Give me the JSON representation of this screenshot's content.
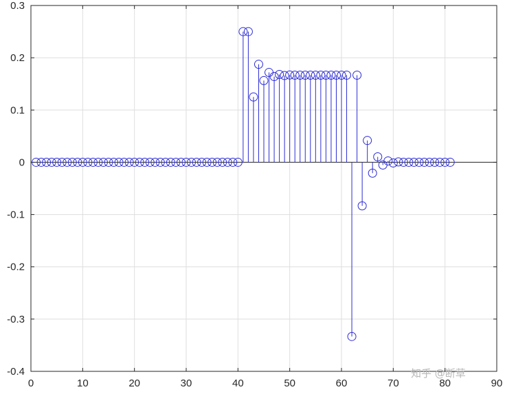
{
  "chart_data": {
    "type": "stem",
    "title": "",
    "xlabel": "",
    "ylabel": "",
    "xlim": [
      0,
      90
    ],
    "ylim": [
      -0.4,
      0.3
    ],
    "grid": true,
    "x_ticks": [
      0,
      10,
      20,
      30,
      40,
      50,
      60,
      70,
      80,
      90
    ],
    "y_ticks": [
      -0.4,
      -0.3,
      -0.2,
      -0.1,
      0,
      0.1,
      0.2,
      0.3
    ],
    "x_tick_labels": [
      "0",
      "10",
      "20",
      "30",
      "40",
      "50",
      "60",
      "70",
      "80",
      "90"
    ],
    "y_tick_labels": [
      "-0.4",
      "-0.3",
      "-0.2",
      "-0.1",
      "0",
      "0.1",
      "0.2",
      "0.3"
    ],
    "series": [
      {
        "color": "#2b2bd6",
        "marker": "open-circle",
        "x": [
          1,
          2,
          3,
          4,
          5,
          6,
          7,
          8,
          9,
          10,
          11,
          12,
          13,
          14,
          15,
          16,
          17,
          18,
          19,
          20,
          21,
          22,
          23,
          24,
          25,
          26,
          27,
          28,
          29,
          30,
          31,
          32,
          33,
          34,
          35,
          36,
          37,
          38,
          39,
          40,
          41,
          42,
          43,
          44,
          45,
          46,
          47,
          48,
          49,
          50,
          51,
          52,
          53,
          54,
          55,
          56,
          57,
          58,
          59,
          60,
          61,
          62,
          63,
          64,
          65,
          66,
          67,
          68,
          69,
          70,
          71,
          72,
          73,
          74,
          75,
          76,
          77,
          78,
          79,
          80,
          81
        ],
        "y": [
          0,
          0,
          0,
          0,
          0,
          0,
          0,
          0,
          0,
          0,
          0,
          0,
          0,
          0,
          0,
          0,
          0,
          0,
          0,
          0,
          0,
          0,
          0,
          0,
          0,
          0,
          0,
          0,
          0,
          0,
          0,
          0,
          0,
          0,
          0,
          0,
          0,
          0,
          0,
          0,
          0.25,
          0.25,
          0.125,
          0.1875,
          0.1563,
          0.1719,
          0.1641,
          0.168,
          0.166,
          0.167,
          0.1667,
          0.1667,
          0.1667,
          0.1667,
          0.1667,
          0.1667,
          0.1667,
          0.1667,
          0.1667,
          0.1667,
          0.1667,
          -0.3333,
          0.1667,
          -0.0833,
          0.0417,
          -0.0208,
          0.0104,
          -0.0052,
          0.0026,
          -0.0013,
          0.0007,
          0,
          0,
          0,
          0,
          0,
          0,
          0,
          0,
          0,
          0
        ]
      }
    ]
  },
  "watermark": "知乎 @断草"
}
